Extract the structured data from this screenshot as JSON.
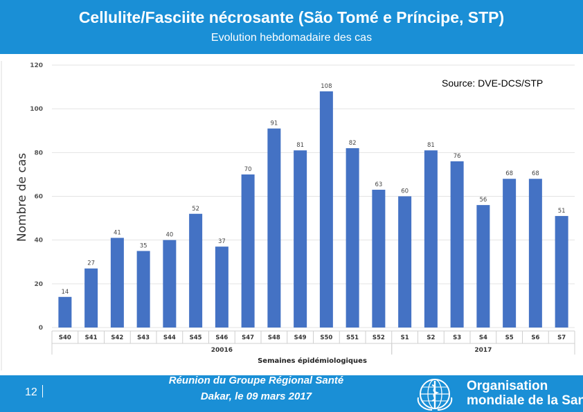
{
  "header": {
    "title": "Cellulite/Fasciite nécrosante (São Tomé e Príncipe, STP)",
    "subtitle": "Evolution hebdomadaire des cas"
  },
  "source": "Source: DVE-DCS/STP",
  "chart_data": {
    "type": "bar",
    "title": "",
    "xlabel": "Semaines épidémiologiques",
    "ylabel": "Nombre de cas",
    "ylim": [
      0,
      120
    ],
    "yticks": [
      0,
      20,
      40,
      60,
      80,
      100,
      120
    ],
    "categories": [
      "S40",
      "S41",
      "S42",
      "S43",
      "S44",
      "S45",
      "S46",
      "S47",
      "S48",
      "S49",
      "S50",
      "S51",
      "S52",
      "S1",
      "S2",
      "S3",
      "S4",
      "S5",
      "S6",
      "S7"
    ],
    "values": [
      14,
      27,
      41,
      35,
      40,
      52,
      37,
      70,
      91,
      81,
      108,
      82,
      63,
      60,
      81,
      76,
      56,
      68,
      68,
      51
    ],
    "value_labels": [
      "14",
      "27",
      "41",
      "35",
      "40",
      "52",
      "37",
      "70",
      "91",
      "81",
      "108",
      "82",
      "63",
      "60",
      "81",
      "76",
      "56",
      "68",
      "68",
      "51"
    ],
    "groups": [
      {
        "name": "20016",
        "from": 0,
        "to": 12
      },
      {
        "name": "2017",
        "from": 13,
        "to": 19
      }
    ],
    "bar_color": "#4472c4",
    "grid": true
  },
  "footer": {
    "page_number": "12",
    "meeting_line1": "Réunion du Groupe Régional Santé",
    "meeting_line2": "Dakar, le 09 mars 2017",
    "org_line1": "Organisation",
    "org_line2": "mondiale de la Santé"
  },
  "colors": {
    "header_bg": "#1a8fd6",
    "footer_bg": "#1a8fd6"
  }
}
